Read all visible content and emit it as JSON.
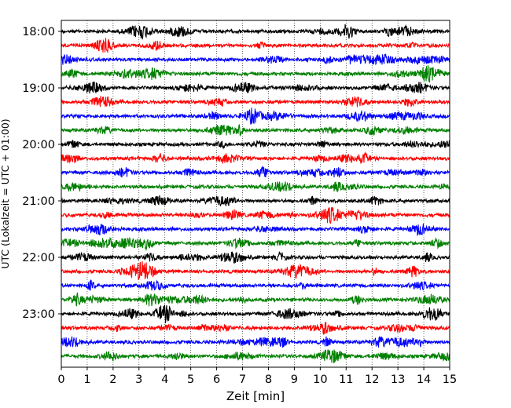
{
  "chart_data": {
    "type": "line",
    "title": "",
    "xlabel": "Zeit  [min]",
    "ylabel": "UTC (Lokalzeit = UTC + 01:00)",
    "xlim": [
      0,
      15
    ],
    "x_ticks": [
      "0",
      "1",
      "2",
      "3",
      "4",
      "5",
      "6",
      "7",
      "8",
      "9",
      "10",
      "11",
      "12",
      "13",
      "14",
      "15"
    ],
    "y_ticks": [
      "18:00",
      "19:00",
      "20:00",
      "21:00",
      "22:00",
      "23:00"
    ],
    "row_start": "18:00",
    "row_interval_min": 15,
    "row_count": 24,
    "trace_colors": [
      "#000000",
      "#ff0000",
      "#0000ff",
      "#008000"
    ],
    "vertical_grid": true,
    "grid_style": "dotted"
  }
}
